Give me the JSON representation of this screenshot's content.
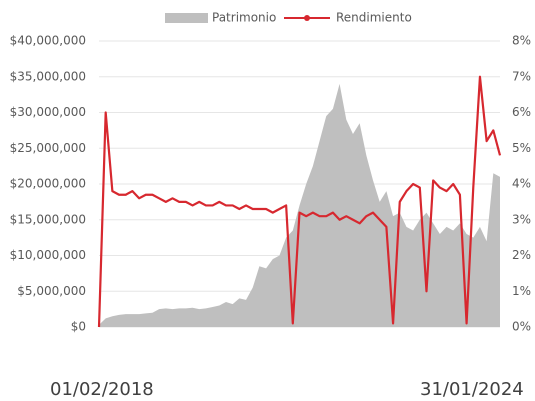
{
  "chart_data": {
    "type": "area_line",
    "categories": [
      "01/02/2018",
      null,
      null,
      null,
      null,
      null,
      null,
      null,
      null,
      null,
      null,
      null,
      null,
      null,
      null,
      null,
      null,
      null,
      null,
      null,
      null,
      null,
      null,
      null,
      null,
      null,
      null,
      null,
      null,
      null,
      null,
      null,
      null,
      null,
      null,
      null,
      null,
      null,
      null,
      null,
      null,
      null,
      null,
      null,
      null,
      null,
      null,
      null,
      null,
      null,
      null,
      null,
      null,
      null,
      null,
      null,
      null,
      null,
      null,
      null,
      "31/01/2024"
    ],
    "series": [
      {
        "name": "Patrimonio",
        "color": "#bfbfbf",
        "axis": "y",
        "values": [
          300000,
          1200000,
          1500000,
          1700000,
          1800000,
          1800000,
          1800000,
          1900000,
          2000000,
          2500000,
          2600000,
          2500000,
          2600000,
          2600000,
          2700000,
          2500000,
          2600000,
          2800000,
          3000000,
          3500000,
          3200000,
          4000000,
          3800000,
          5500000,
          8500000,
          8200000,
          9500000,
          10000000,
          12500000,
          13500000,
          17000000,
          20000000,
          22500000,
          26000000,
          29500000,
          30500000,
          34000000,
          29000000,
          27000000,
          28500000,
          24000000,
          20500000,
          17500000,
          19000000,
          15500000,
          16000000,
          14000000,
          13500000,
          15000000,
          16000000,
          14500000,
          13000000,
          14000000,
          13500000,
          14500000,
          13000000,
          12500000,
          14000000,
          12000000,
          21500000,
          21000000
        ]
      },
      {
        "name": "Rendimiento",
        "color": "#d7282f",
        "axis": "y2",
        "values": [
          0,
          6,
          3.8,
          3.7,
          3.7,
          3.8,
          3.6,
          3.7,
          3.7,
          3.6,
          3.5,
          3.6,
          3.5,
          3.5,
          3.4,
          3.5,
          3.4,
          3.4,
          3.5,
          3.4,
          3.4,
          3.3,
          3.4,
          3.3,
          3.3,
          3.3,
          3.2,
          3.3,
          3.4,
          0.1,
          3.2,
          3.1,
          3.2,
          3.1,
          3.1,
          3.2,
          3.0,
          3.1,
          3.0,
          2.9,
          3.1,
          3.2,
          3.0,
          2.8,
          0.1,
          3.5,
          3.8,
          4.0,
          3.9,
          1.0,
          4.1,
          3.9,
          3.8,
          4.0,
          3.7,
          0.1,
          3.9,
          7.0,
          5.2,
          5.5,
          4.8
        ]
      }
    ],
    "ylim": [
      0,
      40000000
    ],
    "yticks": [
      {
        "value": 0,
        "label": "$0"
      },
      {
        "value": 5000000,
        "label": "$5,000,000"
      },
      {
        "value": 10000000,
        "label": "$10,000,000"
      },
      {
        "value": 15000000,
        "label": "$15,000,000"
      },
      {
        "value": 20000000,
        "label": "$20,000,000"
      },
      {
        "value": 25000000,
        "label": "$25,000,000"
      },
      {
        "value": 30000000,
        "label": "$30,000,000"
      },
      {
        "value": 35000000,
        "label": "$35,000,000"
      },
      {
        "value": 40000000,
        "label": "$40,000,000"
      }
    ],
    "y2lim": [
      0,
      8
    ],
    "y2ticks": [
      {
        "value": 0,
        "label": "0%"
      },
      {
        "value": 1,
        "label": "1%"
      },
      {
        "value": 2,
        "label": "2%"
      },
      {
        "value": 3,
        "label": "3%"
      },
      {
        "value": 4,
        "label": "4%"
      },
      {
        "value": 5,
        "label": "5%"
      },
      {
        "value": 6,
        "label": "6%"
      },
      {
        "value": 7,
        "label": "7%"
      },
      {
        "value": 8,
        "label": "8%"
      }
    ],
    "grid": true,
    "legend": "top"
  }
}
